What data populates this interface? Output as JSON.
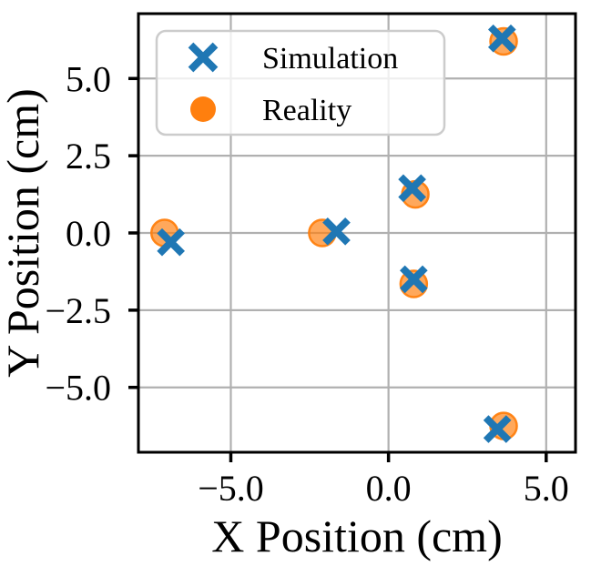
{
  "figure": {
    "background_color": "#ffffff",
    "spine_color": "#000000",
    "grid_color": "#b0b0b0",
    "legend_border_color": "#cccccc",
    "legend_background_color": "#ffffff"
  },
  "chart_data": {
    "type": "scatter",
    "title": "",
    "xlabel": "X Position (cm)",
    "ylabel": "Y Position (cm)",
    "xlim": [
      -7.93,
      5.93
    ],
    "ylim": [
      -7.1,
      7.1
    ],
    "x_ticks": [
      -5.0,
      0.0,
      5.0
    ],
    "x_tick_labels": [
      "−5.0",
      "0.0",
      "5.0"
    ],
    "y_ticks": [
      -5.0,
      -2.5,
      0.0,
      2.5,
      5.0
    ],
    "y_tick_labels": [
      "−5.0",
      "−2.5",
      "0.0",
      "2.5",
      "5.0"
    ],
    "grid": true,
    "legend": {
      "position": "upper left",
      "entries": [
        "Simulation",
        "Reality"
      ]
    },
    "series": [
      {
        "name": "Simulation",
        "marker": "x",
        "color": "#1f77b4",
        "points": [
          [
            -6.9,
            -0.3
          ],
          [
            -1.65,
            0.05
          ],
          [
            0.75,
            1.45
          ],
          [
            0.8,
            -1.5
          ],
          [
            3.45,
            -6.35
          ],
          [
            3.6,
            6.3
          ]
        ]
      },
      {
        "name": "Reality",
        "marker": "circle",
        "color": "#ff7f0e",
        "fill_opacity": 0.68,
        "points": [
          [
            -7.1,
            0.0
          ],
          [
            -2.1,
            0.0
          ],
          [
            0.85,
            1.25
          ],
          [
            0.8,
            -1.65
          ],
          [
            3.65,
            -6.25
          ],
          [
            3.65,
            6.2
          ]
        ]
      }
    ]
  }
}
